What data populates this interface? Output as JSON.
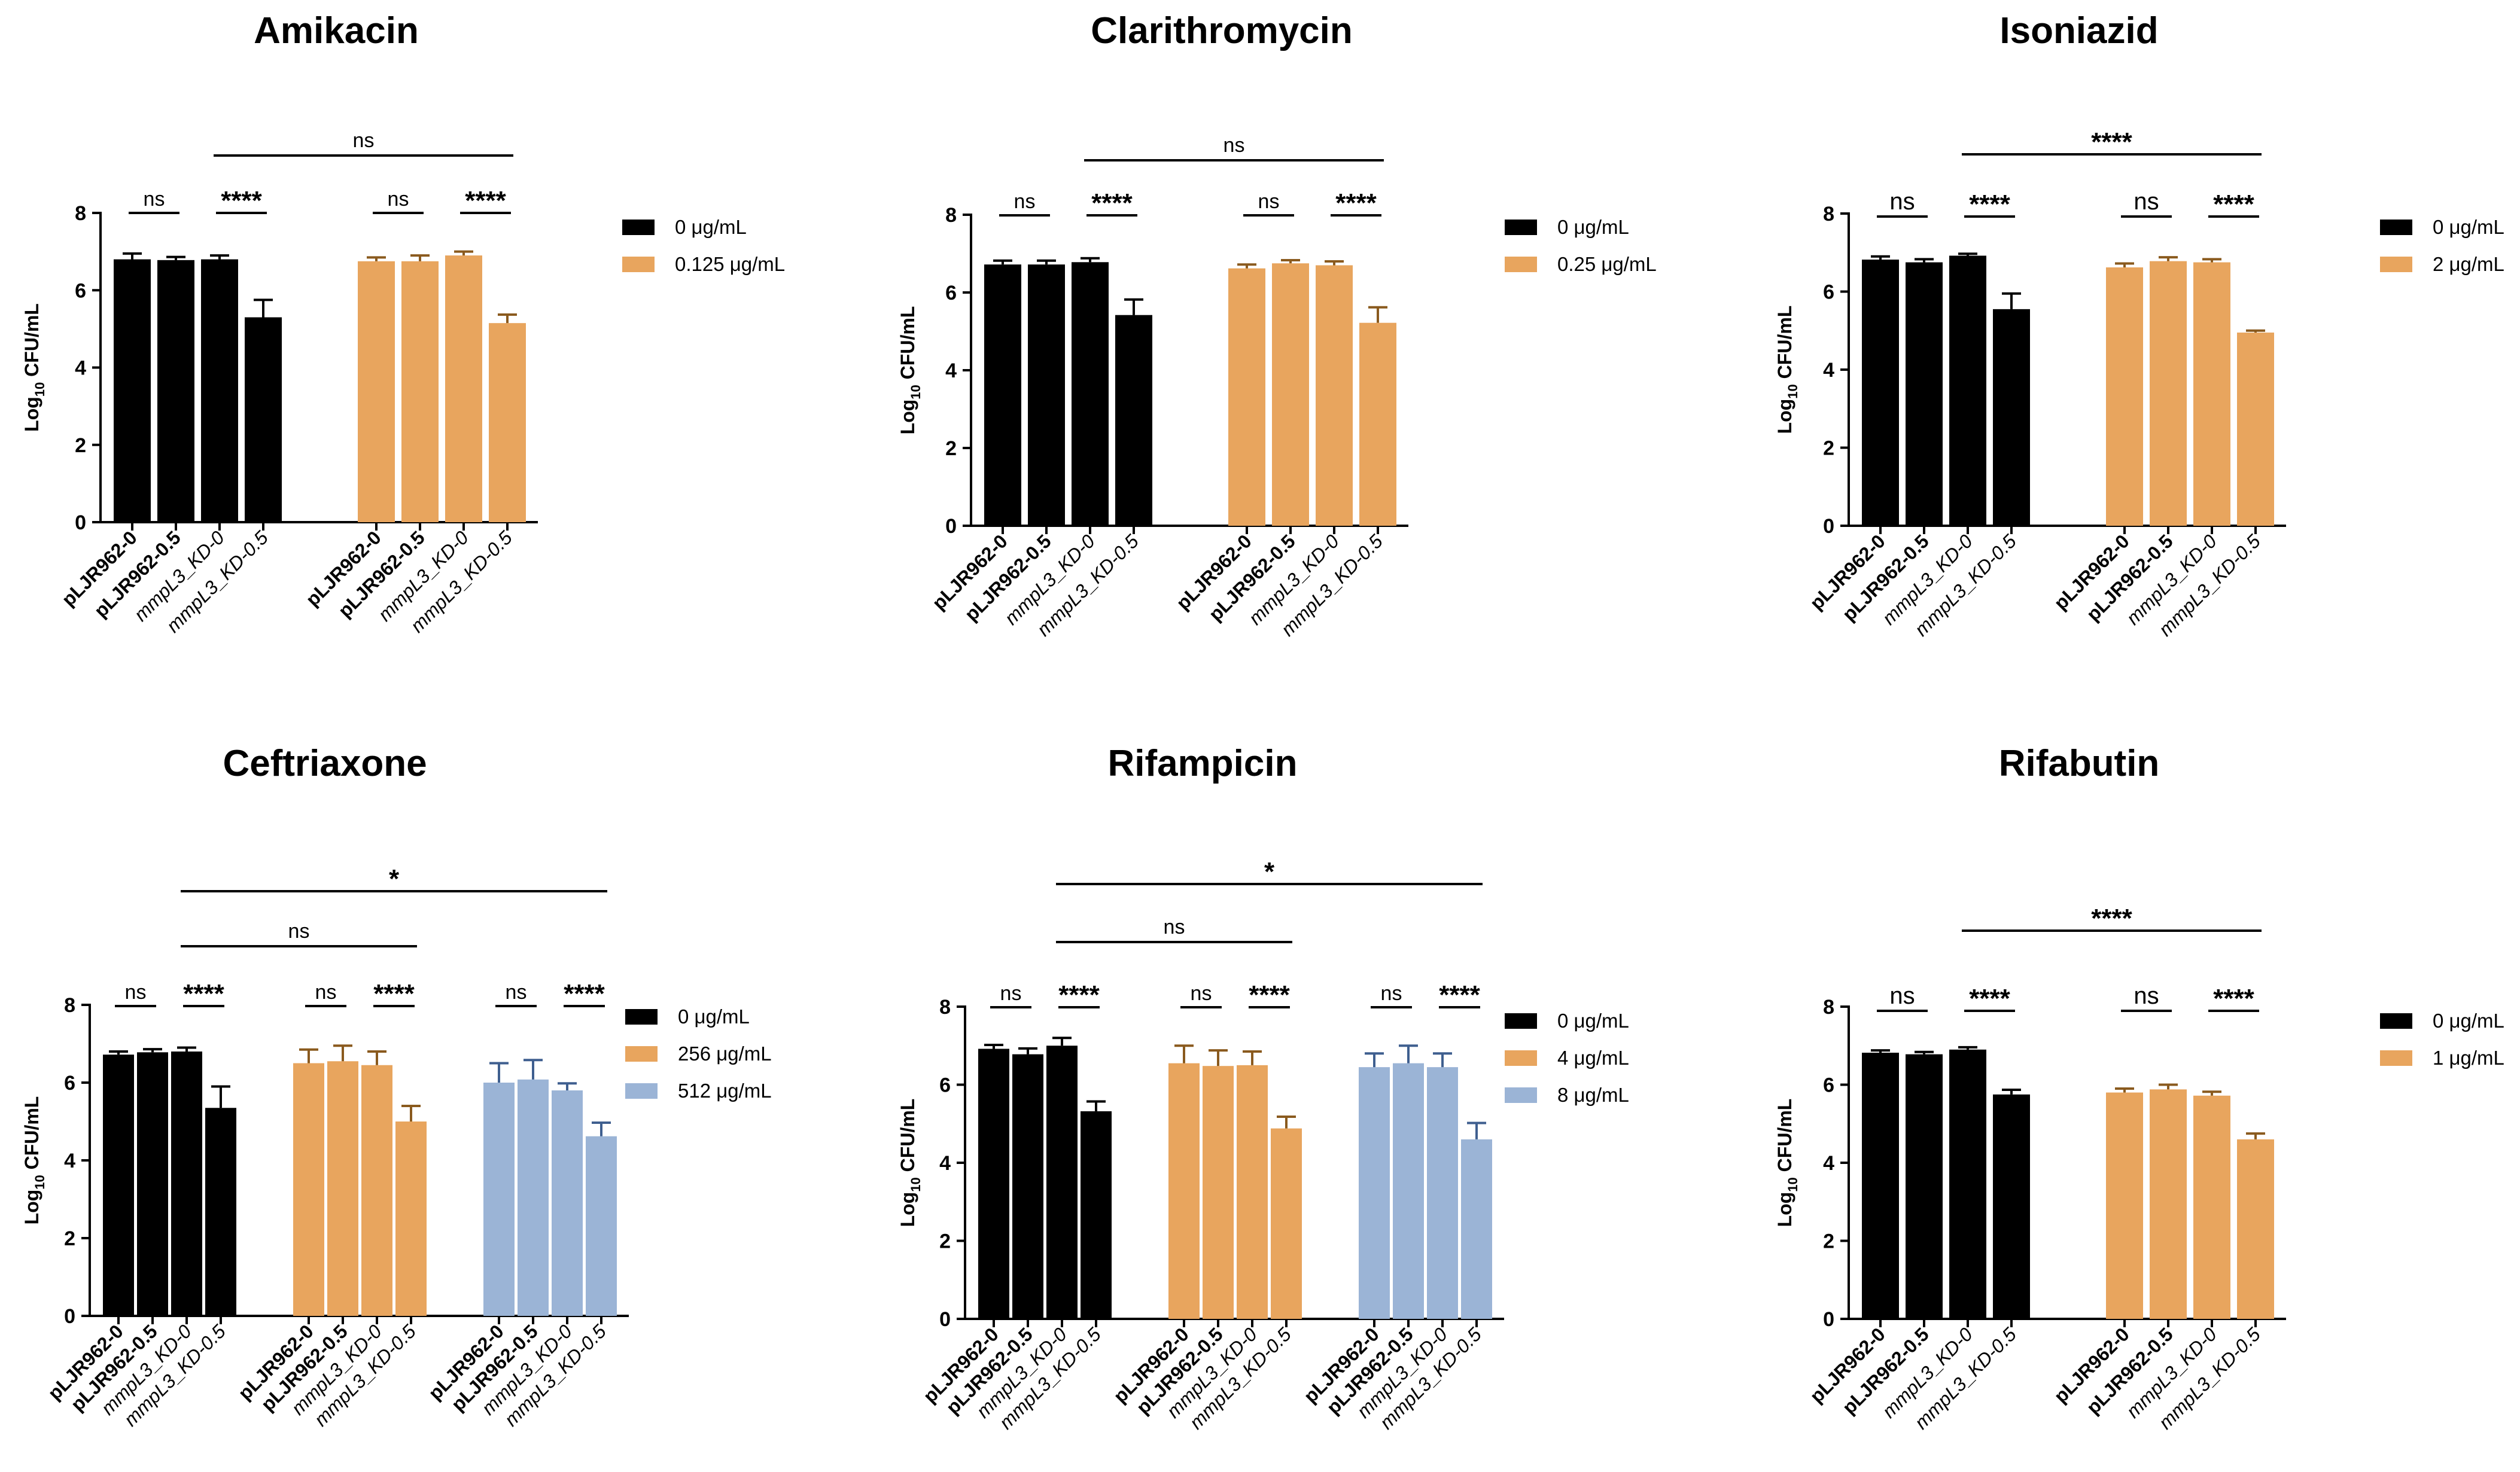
{
  "y_axis_label": {
    "prefix": "Log",
    "subscript": "10",
    "suffix": " CFU/mL"
  },
  "colors": {
    "black": "#000000",
    "orange": "#E8A55E",
    "blue": "#9BB4D6",
    "orange_err": "#8a5a1e",
    "blue_err": "#3f5f8f"
  },
  "chart_data": [
    {
      "type": "bar",
      "title": "Amikacin",
      "ylim": [
        0,
        8
      ],
      "yticks": [
        "0",
        "2",
        "4",
        "6",
        "8"
      ],
      "categories": [
        "pLJR962-0",
        "pLJR962-0.5",
        "mmpL3_KD-0",
        "mmpL3_KD-0.5"
      ],
      "category_italic": [
        false,
        false,
        true,
        true
      ],
      "series": [
        {
          "name": "0 μg/mL",
          "color": "#000000",
          "values": [
            6.8,
            6.78,
            6.8,
            5.3
          ],
          "errors": [
            0.15,
            0.08,
            0.1,
            0.45
          ]
        },
        {
          "name": "0.125 μg/mL",
          "color": "#E8A55E",
          "values": [
            6.75,
            6.75,
            6.9,
            5.15
          ],
          "errors": [
            0.1,
            0.15,
            0.1,
            0.22
          ]
        }
      ],
      "pair_sig": [
        [
          "ns",
          "****"
        ],
        [
          "ns",
          "****"
        ]
      ],
      "brackets": [
        {
          "label": "ns",
          "from_group": 0,
          "to_group": 1,
          "level": 1
        }
      ]
    },
    {
      "type": "bar",
      "title": "Clarithromycin",
      "ylim": [
        0,
        8
      ],
      "yticks": [
        "0",
        "2",
        "4",
        "6",
        "8"
      ],
      "categories": [
        "pLJR962-0",
        "pLJR962-0.5",
        "mmpL3_KD-0",
        "mmpL3_KD-0.5"
      ],
      "category_italic": [
        false,
        false,
        true,
        true
      ],
      "series": [
        {
          "name": "0 μg/mL",
          "color": "#000000",
          "values": [
            6.72,
            6.72,
            6.78,
            5.42
          ],
          "errors": [
            0.1,
            0.1,
            0.1,
            0.4
          ]
        },
        {
          "name": "0.25 μg/mL",
          "color": "#E8A55E",
          "values": [
            6.62,
            6.75,
            6.7,
            5.22
          ],
          "errors": [
            0.1,
            0.08,
            0.1,
            0.4
          ]
        }
      ],
      "pair_sig": [
        [
          "ns",
          "****"
        ],
        [
          "ns",
          "****"
        ]
      ],
      "brackets": [
        {
          "label": "ns",
          "from_group": 0,
          "to_group": 1,
          "level": 1
        }
      ]
    },
    {
      "type": "bar",
      "title": "Isoniazid",
      "ylim": [
        0,
        8
      ],
      "yticks": [
        "0",
        "2",
        "4",
        "6",
        "8"
      ],
      "categories": [
        "pLJR962-0",
        "pLJR962-0.5",
        "mmpL3_KD-0",
        "mmpL3_KD-0.5"
      ],
      "category_italic": [
        false,
        false,
        true,
        true
      ],
      "series": [
        {
          "name": "0 μg/mL",
          "color": "#000000",
          "values": [
            6.82,
            6.75,
            6.92,
            5.55
          ],
          "errors": [
            0.08,
            0.08,
            0.05,
            0.4
          ]
        },
        {
          "name": "2 μg/mL",
          "color": "#E8A55E",
          "values": [
            6.62,
            6.78,
            6.75,
            4.95
          ],
          "errors": [
            0.1,
            0.1,
            0.08,
            0.05
          ]
        }
      ],
      "pair_sig": [
        [
          "ns",
          "****"
        ],
        [
          "ns",
          "****"
        ]
      ],
      "brackets": [
        {
          "label": "****",
          "from_group": 0,
          "to_group": 1,
          "level": 1
        }
      ]
    },
    {
      "type": "bar",
      "title": "Ceftriaxone",
      "ylim": [
        0,
        8
      ],
      "yticks": [
        "0",
        "2",
        "4",
        "6",
        "8"
      ],
      "categories": [
        "pLJR962-0",
        "pLJR962-0.5",
        "mmpL3_KD-0",
        "mmpL3_KD-0.5"
      ],
      "category_italic": [
        false,
        false,
        true,
        true
      ],
      "series": [
        {
          "name": "0 μg/mL",
          "color": "#000000",
          "values": [
            6.72,
            6.78,
            6.8,
            5.35
          ],
          "errors": [
            0.08,
            0.08,
            0.1,
            0.55
          ]
        },
        {
          "name": "256 μg/mL",
          "color": "#E8A55E",
          "values": [
            6.5,
            6.55,
            6.45,
            5.0
          ],
          "errors": [
            0.35,
            0.4,
            0.35,
            0.4
          ]
        },
        {
          "name": "512 μg/mL",
          "color": "#9BB4D6",
          "values": [
            6.0,
            6.08,
            5.8,
            4.62
          ],
          "errors": [
            0.5,
            0.5,
            0.18,
            0.35
          ]
        }
      ],
      "pair_sig": [
        [
          "ns",
          "****"
        ],
        [
          "ns",
          "****"
        ],
        [
          "ns",
          "****"
        ]
      ],
      "brackets": [
        {
          "label": "ns",
          "from_group": 0,
          "to_group": 1,
          "level": 1
        },
        {
          "label": "*",
          "from_group": 0,
          "to_group": 2,
          "level": 2
        }
      ]
    },
    {
      "type": "bar",
      "title": "Rifampicin",
      "ylim": [
        0,
        8
      ],
      "yticks": [
        "0",
        "2",
        "4",
        "6",
        "8"
      ],
      "categories": [
        "pLJR962-0",
        "pLJR962-0.5",
        "mmpL3_KD-0",
        "mmpL3_KD-0.5"
      ],
      "category_italic": [
        false,
        false,
        true,
        true
      ],
      "series": [
        {
          "name": "0 μg/mL",
          "color": "#000000",
          "values": [
            6.92,
            6.78,
            7.0,
            5.32
          ],
          "errors": [
            0.1,
            0.15,
            0.2,
            0.25
          ]
        },
        {
          "name": "4 μg/mL",
          "color": "#E8A55E",
          "values": [
            6.55,
            6.48,
            6.5,
            4.88
          ],
          "errors": [
            0.45,
            0.4,
            0.35,
            0.3
          ]
        },
        {
          "name": "8 μg/mL",
          "color": "#9BB4D6",
          "values": [
            6.45,
            6.55,
            6.45,
            4.6
          ],
          "errors": [
            0.35,
            0.45,
            0.35,
            0.42
          ]
        }
      ],
      "pair_sig": [
        [
          "ns",
          "****"
        ],
        [
          "ns",
          "****"
        ],
        [
          "ns",
          "****"
        ]
      ],
      "brackets": [
        {
          "label": "ns",
          "from_group": 0,
          "to_group": 1,
          "level": 1
        },
        {
          "label": "*",
          "from_group": 0,
          "to_group": 2,
          "level": 2
        }
      ]
    },
    {
      "type": "bar",
      "title": "Rifabutin",
      "ylim": [
        0,
        8
      ],
      "yticks": [
        "0",
        "2",
        "4",
        "6",
        "8"
      ],
      "categories": [
        "pLJR962-0",
        "pLJR962-0.5",
        "mmpL3_KD-0",
        "mmpL3_KD-0.5"
      ],
      "category_italic": [
        false,
        false,
        true,
        true
      ],
      "series": [
        {
          "name": "0 μg/mL",
          "color": "#000000",
          "values": [
            6.82,
            6.78,
            6.9,
            5.75
          ],
          "errors": [
            0.06,
            0.06,
            0.06,
            0.12
          ]
        },
        {
          "name": "1 μg/mL",
          "color": "#E8A55E",
          "values": [
            5.8,
            5.88,
            5.72,
            4.6
          ],
          "errors": [
            0.1,
            0.12,
            0.1,
            0.15
          ]
        }
      ],
      "pair_sig": [
        [
          "ns",
          "****"
        ],
        [
          "ns",
          "****"
        ]
      ],
      "brackets": [
        {
          "label": "****",
          "from_group": 0,
          "to_group": 1,
          "level": 1
        }
      ]
    }
  ]
}
